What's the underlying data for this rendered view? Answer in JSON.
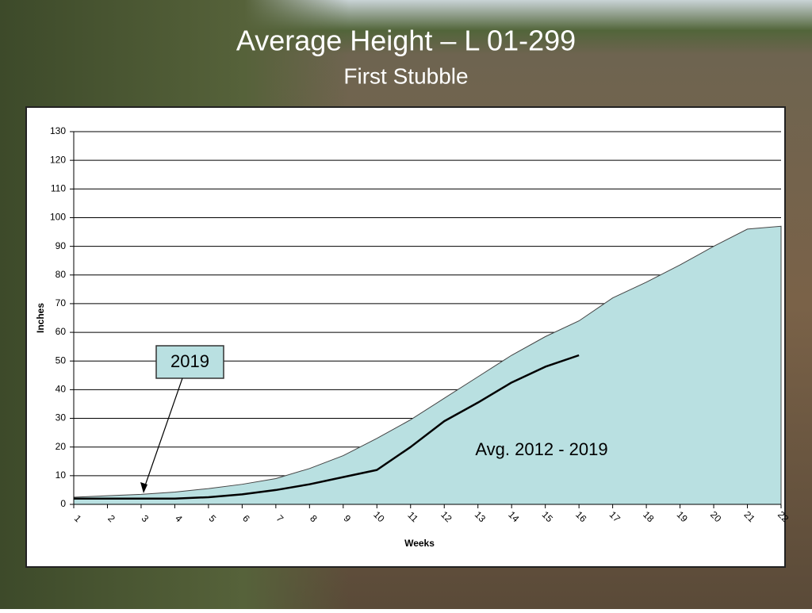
{
  "chart_data": {
    "type": "area",
    "title": "Average Height – L 01-299",
    "subtitle": "First Stubble",
    "x_label": "Weeks",
    "y_label": "Inches",
    "x": [
      1,
      2,
      3,
      4,
      5,
      6,
      7,
      8,
      9,
      10,
      11,
      12,
      13,
      14,
      15,
      16,
      17,
      18,
      19,
      20,
      21,
      22
    ],
    "xlim": [
      1,
      22
    ],
    "xticks": [
      1,
      2,
      3,
      4,
      5,
      6,
      7,
      8,
      9,
      10,
      11,
      12,
      13,
      14,
      15,
      16,
      17,
      18,
      19,
      20,
      21,
      22
    ],
    "ylim": [
      0,
      130
    ],
    "yticks": [
      0,
      10,
      20,
      30,
      40,
      50,
      60,
      70,
      80,
      90,
      100,
      110,
      120,
      130
    ],
    "grid": true,
    "series": [
      {
        "name": "Avg. 2012 - 2019",
        "type": "area",
        "color": "#b9e0e1",
        "values": [
          2.5,
          3,
          3.5,
          4.3,
          5.5,
          7,
          9,
          12.5,
          17,
          23,
          29.5,
          37,
          44.5,
          52,
          58.5,
          64,
          72,
          77.5,
          83.5,
          90,
          96,
          97
        ]
      },
      {
        "name": "2019",
        "type": "line",
        "color": "#000000",
        "values": [
          2,
          2,
          2,
          2,
          2.5,
          3.5,
          5,
          7,
          9.5,
          12,
          20,
          29,
          35.5,
          42.5,
          48,
          52,
          null,
          null,
          null,
          null,
          null,
          null
        ]
      }
    ]
  }
}
